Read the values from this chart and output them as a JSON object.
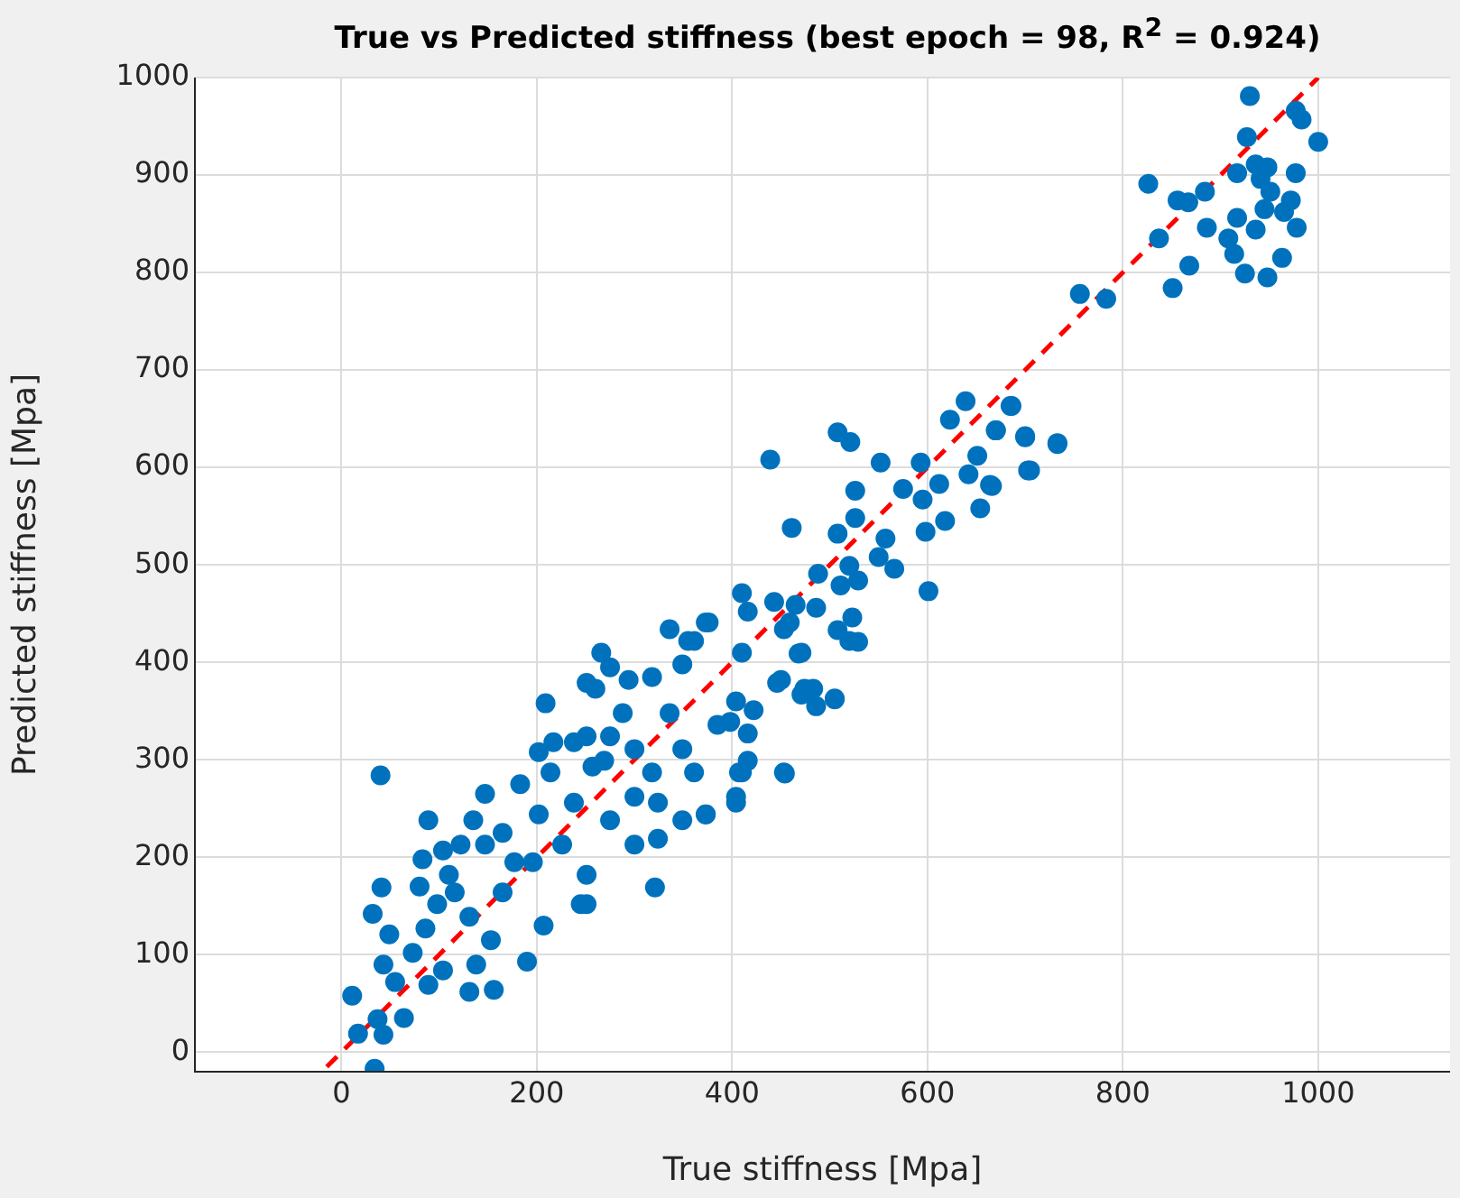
{
  "chart_data": {
    "type": "scatter",
    "title": "True vs Predicted stiffness (best epoch = 98, R$^{2}$ = 0.924)",
    "xlabel": "True stiffness [Mpa]",
    "ylabel": "Predicted stiffness [Mpa]",
    "xlim": [
      -150,
      1135
    ],
    "ylim": [
      -20,
      1000
    ],
    "xticks": [
      0,
      200,
      400,
      600,
      800,
      1000
    ],
    "yticks": [
      0,
      100,
      200,
      300,
      400,
      500,
      600,
      700,
      800,
      900,
      1000
    ],
    "grid": true,
    "legend": false,
    "marker": "circle",
    "series": [
      {
        "color": "#0072bd",
        "x": [
          930,
          977,
          983,
          1000,
          927,
          977,
          936,
          948,
          917,
          941,
          951,
          972,
          945,
          965,
          978,
          917,
          936,
          908,
          914,
          963,
          925,
          948,
          826,
          856,
          867,
          884,
          886,
          837,
          868,
          851,
          756,
          783,
          686,
          670,
          700,
          733,
          703,
          664,
          639,
          685,
          623,
          670,
          700,
          733,
          508,
          521,
          439,
          552,
          593,
          651,
          642,
          705,
          666,
          526,
          575,
          612,
          595,
          654,
          526,
          618,
          461,
          508,
          598,
          557,
          550,
          566,
          520,
          488,
          529,
          511,
          601,
          410,
          443,
          465,
          486,
          416,
          523,
          459,
          508,
          529,
          468,
          376,
          361,
          450,
          474,
          505,
          486,
          454,
          407,
          404,
          373,
          422,
          398,
          416,
          34,
          40,
          11,
          17,
          43,
          37,
          64,
          41,
          32,
          49,
          43,
          55,
          73,
          86,
          80,
          89,
          104,
          131,
          156,
          190,
          207,
          321,
          89,
          83,
          110,
          135,
          147,
          122,
          98,
          131,
          153,
          138,
          165,
          177,
          165,
          183,
          202,
          214,
          226,
          238,
          251,
          245,
          209,
          217,
          202,
          251,
          266,
          275,
          260,
          294,
          288,
          269,
          300,
          318,
          275,
          300,
          251,
          336,
          355,
          373,
          349,
          318,
          336,
          349,
          324,
          349,
          373,
          324,
          361,
          385,
          404,
          410,
          416,
          404,
          410,
          453,
          446,
          471,
          483,
          505,
          453,
          471,
          520,
          257,
          196,
          147,
          116,
          104,
          300,
          275,
          238,
          251
        ],
        "values": [
          981,
          966,
          957,
          934,
          939,
          902,
          911,
          908,
          902,
          896,
          883,
          874,
          865,
          862,
          846,
          856,
          844,
          835,
          819,
          815,
          799,
          795,
          891,
          874,
          872,
          883,
          846,
          835,
          807,
          784,
          778,
          773,
          663,
          638,
          632,
          625,
          597,
          582,
          668,
          663,
          649,
          638,
          631,
          624,
          636,
          626,
          608,
          605,
          605,
          612,
          593,
          597,
          581,
          576,
          578,
          583,
          567,
          558,
          548,
          545,
          538,
          532,
          534,
          527,
          508,
          496,
          499,
          491,
          484,
          479,
          473,
          471,
          462,
          459,
          456,
          452,
          446,
          441,
          433,
          421,
          409,
          441,
          422,
          382,
          373,
          363,
          355,
          286,
          287,
          262,
          244,
          351,
          339,
          327,
          -17,
          284,
          58,
          19,
          18,
          34,
          35,
          169,
          142,
          121,
          90,
          72,
          102,
          127,
          170,
          69,
          84,
          62,
          64,
          93,
          130,
          169,
          238,
          198,
          182,
          238,
          265,
          213,
          152,
          139,
          115,
          90,
          164,
          195,
          225,
          275,
          244,
          287,
          213,
          256,
          182,
          152,
          358,
          318,
          308,
          324,
          410,
          395,
          373,
          382,
          348,
          299,
          311,
          287,
          238,
          213,
          152,
          434,
          422,
          441,
          398,
          385,
          348,
          311,
          256,
          238,
          244,
          219,
          287,
          336,
          360,
          410,
          299,
          256,
          287,
          287,
          379,
          367,
          373,
          362,
          434,
          410,
          422,
          293,
          195,
          213,
          164,
          207,
          262,
          324,
          318,
          379
        ]
      },
      {
        "type": "line",
        "color": "#ff0000",
        "line_style": "dashed",
        "marker": "none",
        "x": [
          -15,
          1000
        ],
        "values": [
          -15,
          1000
        ]
      }
    ]
  }
}
